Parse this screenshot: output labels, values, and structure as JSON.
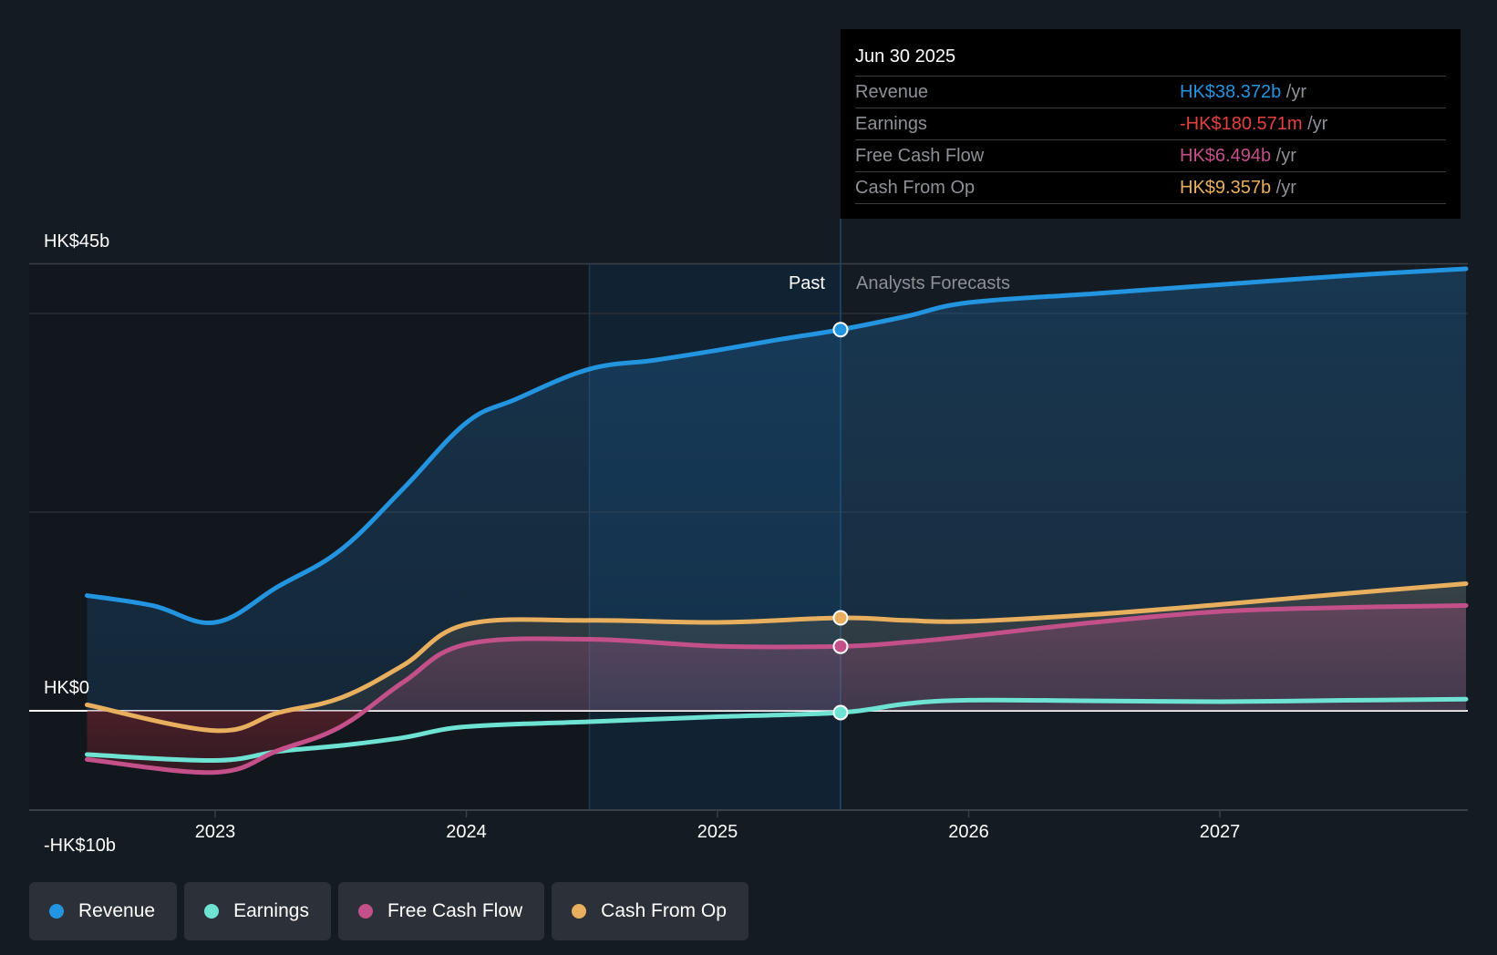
{
  "tooltip": {
    "date": "Jun 30 2025",
    "rows": [
      {
        "name": "Revenue",
        "value": "HK$38.372b",
        "unit": "/yr",
        "color": "#2394df"
      },
      {
        "name": "Earnings",
        "value": "-HK$180.571m",
        "unit": "/yr",
        "color": "#e64141"
      },
      {
        "name": "Free Cash Flow",
        "value": "HK$6.494b",
        "unit": "/yr",
        "color": "#c4508a"
      },
      {
        "name": "Cash From Op",
        "value": "HK$9.357b",
        "unit": "/yr",
        "color": "#e8b05e"
      }
    ]
  },
  "period_labels": {
    "past": "Past",
    "forecast": "Analysts Forecasts"
  },
  "legend": [
    {
      "label": "Revenue",
      "color": "#2394df"
    },
    {
      "label": "Earnings",
      "color": "#6ee3d3"
    },
    {
      "label": "Free Cash Flow",
      "color": "#c4508a"
    },
    {
      "label": "Cash From Op",
      "color": "#e8b05e"
    }
  ],
  "chart_data": {
    "type": "line",
    "title": "",
    "xlabel": "",
    "ylabel": "",
    "currency": "HK$",
    "ylim": [
      -10,
      45
    ],
    "y_tick_labels": [
      {
        "value": 45,
        "label": "HK$45b"
      },
      {
        "value": 0,
        "label": "HK$0"
      },
      {
        "value": -10,
        "label": "-HK$10b"
      }
    ],
    "y_gridlines": [
      45,
      40,
      20,
      0
    ],
    "xlim": [
      2022.49,
      2027.98
    ],
    "x_tick_labels": [
      {
        "value": 2023,
        "label": "2023"
      },
      {
        "value": 2024,
        "label": "2024"
      },
      {
        "value": 2025,
        "label": "2025"
      },
      {
        "value": 2026,
        "label": "2026"
      },
      {
        "value": 2027,
        "label": "2027"
      }
    ],
    "past_highlight_range": [
      2024.49,
      2025.49
    ],
    "forecast_start": 2025.49,
    "grid": true,
    "legend_position": "bottom-left",
    "series": [
      {
        "name": "Revenue",
        "color": "#2394df",
        "x": [
          2022.49,
          2022.75,
          2023.0,
          2023.25,
          2023.5,
          2023.75,
          2024.0,
          2024.2,
          2024.49,
          2024.75,
          2025.0,
          2025.25,
          2025.49,
          2025.75,
          2026.0,
          2026.5,
          2027.0,
          2027.5,
          2027.98
        ],
        "values": [
          11.6,
          10.6,
          8.9,
          12.5,
          16.2,
          22.4,
          29.0,
          31.4,
          34.4,
          35.3,
          36.3,
          37.4,
          38.372,
          39.7,
          41.1,
          42.0,
          42.9,
          43.8,
          44.5
        ]
      },
      {
        "name": "Earnings",
        "color": "#6ee3d3",
        "x": [
          2022.49,
          2023.0,
          2023.25,
          2023.5,
          2023.75,
          2024.0,
          2024.49,
          2025.0,
          2025.49,
          2025.75,
          2026.0,
          2026.5,
          2027.0,
          2027.5,
          2027.98
        ],
        "values": [
          -4.4,
          -5.0,
          -4.1,
          -3.5,
          -2.7,
          -1.6,
          -1.1,
          -0.6,
          -0.18,
          0.7,
          1.07,
          1.0,
          0.92,
          1.05,
          1.17
        ]
      },
      {
        "name": "Free Cash Flow",
        "color": "#c4508a",
        "x": [
          2022.49,
          2023.0,
          2023.25,
          2023.5,
          2023.75,
          2024.0,
          2024.49,
          2025.0,
          2025.49,
          2025.75,
          2026.0,
          2026.5,
          2027.0,
          2027.5,
          2027.98
        ],
        "values": [
          -4.9,
          -6.2,
          -4.0,
          -1.6,
          2.9,
          6.7,
          7.2,
          6.5,
          6.494,
          6.9,
          7.5,
          8.9,
          10.0,
          10.4,
          10.6
        ]
      },
      {
        "name": "Cash From Op",
        "color": "#e8b05e",
        "x": [
          2022.49,
          2023.0,
          2023.25,
          2023.5,
          2023.75,
          2024.0,
          2024.49,
          2025.0,
          2025.49,
          2025.75,
          2026.0,
          2026.5,
          2027.0,
          2027.5,
          2027.98
        ],
        "values": [
          0.6,
          -2.0,
          -0.2,
          1.3,
          4.6,
          8.7,
          9.1,
          8.9,
          9.357,
          9.1,
          9.0,
          9.7,
          10.7,
          11.8,
          12.8
        ]
      }
    ]
  }
}
